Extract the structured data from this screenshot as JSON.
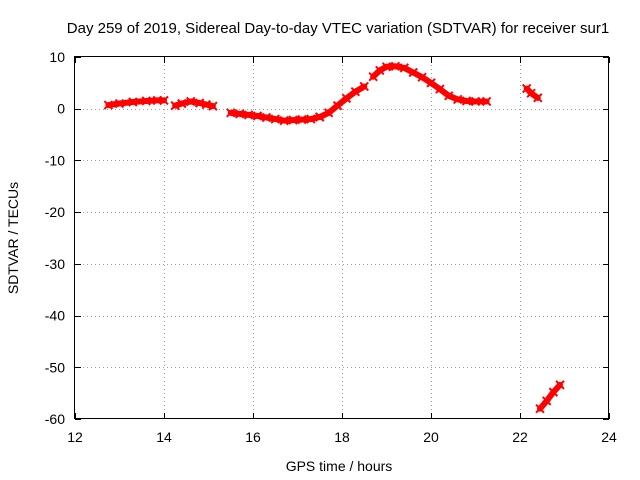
{
  "chart_data": {
    "type": "line",
    "title": "Day 259 of 2019, Sidereal Day-to-day VTEC variation (SDTVAR) for receiver sur1",
    "xlabel": "GPS time / hours",
    "ylabel": "SDTVAR / TECUs",
    "xlim": [
      12,
      24
    ],
    "ylim": [
      -60,
      10
    ],
    "x_ticks": [
      12,
      14,
      16,
      18,
      20,
      22,
      24
    ],
    "y_ticks": [
      10,
      0,
      -10,
      -20,
      -30,
      -40,
      -50,
      -60
    ],
    "grid": true,
    "colors": {
      "series": "#ff0000",
      "grid": "#a0a0a0",
      "frame": "#000000"
    },
    "series": [
      {
        "name": "segment-1",
        "x": [
          12.75,
          13.0,
          13.3,
          13.6,
          13.85,
          14.0
        ],
        "y": [
          0.7,
          1.0,
          1.3,
          1.5,
          1.6,
          1.6
        ]
      },
      {
        "name": "segment-2",
        "x": [
          14.25,
          14.4,
          14.6,
          14.8,
          14.95,
          15.1
        ],
        "y": [
          0.6,
          1.0,
          1.4,
          1.1,
          0.8,
          0.5
        ]
      },
      {
        "name": "segment-3",
        "x": [
          15.5,
          15.7,
          15.9,
          16.1,
          16.3,
          16.5,
          16.7,
          16.9,
          17.1,
          17.3,
          17.5
        ],
        "y": [
          -0.8,
          -1.0,
          -1.2,
          -1.4,
          -1.7,
          -2.0,
          -2.3,
          -2.2,
          -2.1,
          -2.0,
          -1.6
        ]
      },
      {
        "name": "segment-4",
        "x": [
          17.5,
          17.7,
          17.9,
          18.1,
          18.3,
          18.5
        ],
        "y": [
          -1.6,
          -0.8,
          0.6,
          2.0,
          3.3,
          4.3
        ]
      },
      {
        "name": "segment-5",
        "x": [
          18.7,
          18.85,
          19.0,
          19.2,
          19.4,
          19.6,
          19.8,
          20.0,
          20.2,
          20.4,
          20.6,
          20.8,
          21.0,
          21.25
        ],
        "y": [
          6.2,
          7.4,
          8.1,
          8.2,
          7.9,
          7.0,
          6.1,
          5.0,
          3.8,
          2.5,
          1.8,
          1.5,
          1.4,
          1.4
        ]
      },
      {
        "name": "segment-6",
        "x": [
          22.15,
          22.25,
          22.4
        ],
        "y": [
          3.9,
          3.0,
          2.1
        ]
      },
      {
        "name": "segment-7",
        "x": [
          22.45,
          22.6,
          22.75,
          22.9
        ],
        "y": [
          -58.0,
          -56.5,
          -54.8,
          -53.4
        ]
      }
    ]
  }
}
